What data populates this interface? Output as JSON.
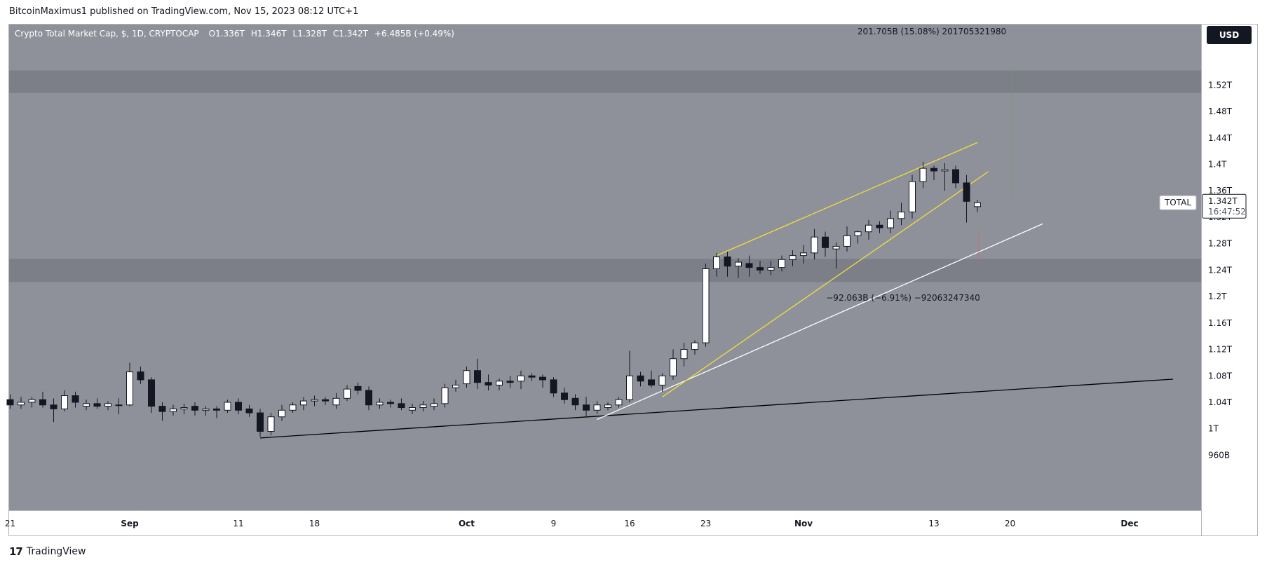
{
  "header": {
    "published": "BitcoinMaximus1 published on TradingView.com, Nov 15, 2023 08:12 UTC+1"
  },
  "legend": {
    "symbol": "Crypto Total Market Cap, $, 1D, CRYPTOCAP",
    "open_label": "O",
    "open": "1.336T",
    "high_label": "H",
    "high": "1.346T",
    "low_label": "L",
    "low": "1.328T",
    "close_label": "C",
    "close": "1.342T",
    "change": "+6.485B (+0.49%)"
  },
  "currency_button": "USD",
  "price_tag": {
    "name": "TOTAL",
    "price": "1.342T",
    "countdown": "16:47:52"
  },
  "measures": {
    "up": "201.705B (15.08%) 201705321980",
    "down": "−92.063B (−6.91%) −92063247340"
  },
  "footer": {
    "brand": "TradingView"
  },
  "colors": {
    "plot_bg": "#8e9199",
    "zone": "#7c7f87",
    "axis_bg": "#ffffff",
    "up_candle": "#ffffff",
    "down_candle": "#131722",
    "yellow_line": "#f0de3c",
    "white_line": "#ffffff",
    "black_line": "#000000"
  },
  "chart_data": {
    "type": "candlestick",
    "title": "Crypto Total Market Cap, $, 1D, CRYPTOCAP",
    "y_unit": "USD (trillions)",
    "y_ticks": [
      {
        "v": 1.52,
        "label": "1.52T"
      },
      {
        "v": 1.48,
        "label": "1.48T"
      },
      {
        "v": 1.44,
        "label": "1.44T"
      },
      {
        "v": 1.4,
        "label": "1.4T"
      },
      {
        "v": 1.36,
        "label": "1.36T"
      },
      {
        "v": 1.32,
        "label": "1.32T"
      },
      {
        "v": 1.28,
        "label": "1.28T"
      },
      {
        "v": 1.24,
        "label": "1.24T"
      },
      {
        "v": 1.2,
        "label": "1.2T"
      },
      {
        "v": 1.16,
        "label": "1.16T"
      },
      {
        "v": 1.12,
        "label": "1.12T"
      },
      {
        "v": 1.08,
        "label": "1.08T"
      },
      {
        "v": 1.04,
        "label": "1.04T"
      },
      {
        "v": 1.0,
        "label": "1T"
      },
      {
        "v": 0.96,
        "label": "960B"
      }
    ],
    "x_ticks": [
      {
        "i": 0,
        "label": "21"
      },
      {
        "i": 11,
        "label": "Sep"
      },
      {
        "i": 21,
        "label": "11"
      },
      {
        "i": 28,
        "label": "18"
      },
      {
        "i": 42,
        "label": "Oct"
      },
      {
        "i": 50,
        "label": "9"
      },
      {
        "i": 57,
        "label": "16"
      },
      {
        "i": 64,
        "label": "23"
      },
      {
        "i": 73,
        "label": "Nov"
      },
      {
        "i": 85,
        "label": "13"
      },
      {
        "i": 92,
        "label": "20"
      },
      {
        "i": 103,
        "label": "Dec"
      }
    ],
    "first_date": "Aug 21, 2023",
    "candles": [
      [
        1.044,
        1.052,
        1.03,
        1.036
      ],
      [
        1.036,
        1.048,
        1.03,
        1.04
      ],
      [
        1.04,
        1.048,
        1.032,
        1.044
      ],
      [
        1.044,
        1.056,
        1.032,
        1.036
      ],
      [
        1.036,
        1.046,
        1.01,
        1.03
      ],
      [
        1.03,
        1.058,
        1.026,
        1.05
      ],
      [
        1.05,
        1.056,
        1.032,
        1.04
      ],
      [
        1.034,
        1.044,
        1.028,
        1.038
      ],
      [
        1.038,
        1.046,
        1.03,
        1.034
      ],
      [
        1.034,
        1.042,
        1.028,
        1.038
      ],
      [
        1.036,
        1.046,
        1.022,
        1.036
      ],
      [
        1.036,
        1.1,
        1.034,
        1.086
      ],
      [
        1.086,
        1.094,
        1.068,
        1.074
      ],
      [
        1.074,
        1.078,
        1.024,
        1.034
      ],
      [
        1.034,
        1.04,
        1.012,
        1.026
      ],
      [
        1.026,
        1.036,
        1.02,
        1.03
      ],
      [
        1.03,
        1.038,
        1.022,
        1.032
      ],
      [
        1.034,
        1.04,
        1.02,
        1.028
      ],
      [
        1.028,
        1.034,
        1.02,
        1.03
      ],
      [
        1.03,
        1.034,
        1.016,
        1.028
      ],
      [
        1.028,
        1.044,
        1.024,
        1.04
      ],
      [
        1.04,
        1.046,
        1.022,
        1.028
      ],
      [
        1.03,
        1.036,
        1.018,
        1.024
      ],
      [
        1.024,
        1.03,
        0.988,
        0.996
      ],
      [
        0.996,
        1.024,
        0.99,
        1.018
      ],
      [
        1.018,
        1.036,
        1.012,
        1.028
      ],
      [
        1.028,
        1.04,
        1.024,
        1.036
      ],
      [
        1.036,
        1.048,
        1.028,
        1.042
      ],
      [
        1.042,
        1.05,
        1.034,
        1.044
      ],
      [
        1.044,
        1.048,
        1.036,
        1.042
      ],
      [
        1.036,
        1.054,
        1.03,
        1.046
      ],
      [
        1.046,
        1.066,
        1.042,
        1.06
      ],
      [
        1.064,
        1.07,
        1.052,
        1.058
      ],
      [
        1.058,
        1.064,
        1.028,
        1.036
      ],
      [
        1.036,
        1.046,
        1.03,
        1.04
      ],
      [
        1.04,
        1.044,
        1.032,
        1.038
      ],
      [
        1.038,
        1.046,
        1.028,
        1.032
      ],
      [
        1.028,
        1.038,
        1.022,
        1.032
      ],
      [
        1.032,
        1.042,
        1.026,
        1.036
      ],
      [
        1.034,
        1.046,
        1.028,
        1.038
      ],
      [
        1.038,
        1.068,
        1.032,
        1.062
      ],
      [
        1.062,
        1.074,
        1.056,
        1.066
      ],
      [
        1.068,
        1.094,
        1.062,
        1.088
      ],
      [
        1.088,
        1.106,
        1.06,
        1.07
      ],
      [
        1.07,
        1.082,
        1.058,
        1.066
      ],
      [
        1.066,
        1.076,
        1.058,
        1.072
      ],
      [
        1.072,
        1.08,
        1.062,
        1.07
      ],
      [
        1.072,
        1.088,
        1.06,
        1.08
      ],
      [
        1.08,
        1.084,
        1.072,
        1.078
      ],
      [
        1.078,
        1.082,
        1.062,
        1.074
      ],
      [
        1.074,
        1.078,
        1.048,
        1.054
      ],
      [
        1.054,
        1.062,
        1.038,
        1.044
      ],
      [
        1.046,
        1.052,
        1.028,
        1.036
      ],
      [
        1.036,
        1.048,
        1.018,
        1.028
      ],
      [
        1.028,
        1.042,
        1.022,
        1.036
      ],
      [
        1.032,
        1.04,
        1.028,
        1.036
      ],
      [
        1.036,
        1.048,
        1.032,
        1.044
      ],
      [
        1.044,
        1.118,
        1.04,
        1.08
      ],
      [
        1.08,
        1.086,
        1.064,
        1.072
      ],
      [
        1.074,
        1.088,
        1.062,
        1.066
      ],
      [
        1.066,
        1.084,
        1.056,
        1.08
      ],
      [
        1.08,
        1.12,
        1.074,
        1.106
      ],
      [
        1.106,
        1.13,
        1.094,
        1.12
      ],
      [
        1.12,
        1.134,
        1.112,
        1.13
      ],
      [
        1.13,
        1.25,
        1.124,
        1.242
      ],
      [
        1.242,
        1.266,
        1.23,
        1.26
      ],
      [
        1.26,
        1.268,
        1.23,
        1.246
      ],
      [
        1.246,
        1.258,
        1.228,
        1.252
      ],
      [
        1.25,
        1.262,
        1.23,
        1.244
      ],
      [
        1.244,
        1.254,
        1.234,
        1.24
      ],
      [
        1.24,
        1.254,
        1.232,
        1.244
      ],
      [
        1.244,
        1.262,
        1.238,
        1.256
      ],
      [
        1.256,
        1.27,
        1.246,
        1.262
      ],
      [
        1.262,
        1.278,
        1.25,
        1.266
      ],
      [
        1.266,
        1.302,
        1.256,
        1.29
      ],
      [
        1.29,
        1.298,
        1.26,
        1.274
      ],
      [
        1.272,
        1.282,
        1.242,
        1.276
      ],
      [
        1.276,
        1.306,
        1.268,
        1.292
      ],
      [
        1.292,
        1.3,
        1.28,
        1.298
      ],
      [
        1.298,
        1.316,
        1.286,
        1.308
      ],
      [
        1.308,
        1.314,
        1.296,
        1.304
      ],
      [
        1.304,
        1.33,
        1.296,
        1.318
      ],
      [
        1.318,
        1.342,
        1.308,
        1.328
      ],
      [
        1.328,
        1.384,
        1.318,
        1.374
      ],
      [
        1.374,
        1.404,
        1.364,
        1.394
      ],
      [
        1.394,
        1.398,
        1.376,
        1.39
      ],
      [
        1.39,
        1.402,
        1.36,
        1.392
      ],
      [
        1.392,
        1.398,
        1.364,
        1.372
      ],
      [
        1.372,
        1.384,
        1.312,
        1.344
      ],
      [
        1.336,
        1.346,
        1.328,
        1.342
      ]
    ],
    "levels": [
      {
        "name": "upper resistance zone",
        "from": 1.508,
        "to": 1.542
      },
      {
        "name": "horizontal support zone",
        "from": 1.222,
        "to": 1.257
      }
    ],
    "trendlines": [
      {
        "name": "ascending support (black)",
        "from": [
          23,
          0.986
        ],
        "to": [
          107,
          1.075
        ]
      },
      {
        "name": "ascending support (white)",
        "from": [
          54,
          1.014
        ],
        "to": [
          95,
          1.31
        ]
      },
      {
        "name": "wedge upper (yellow)",
        "from": [
          65,
          1.262
        ],
        "to": [
          89,
          1.433
        ]
      },
      {
        "name": "wedge lower (yellow)",
        "from": [
          60,
          1.048
        ],
        "to": [
          90,
          1.389
        ]
      }
    ]
  }
}
